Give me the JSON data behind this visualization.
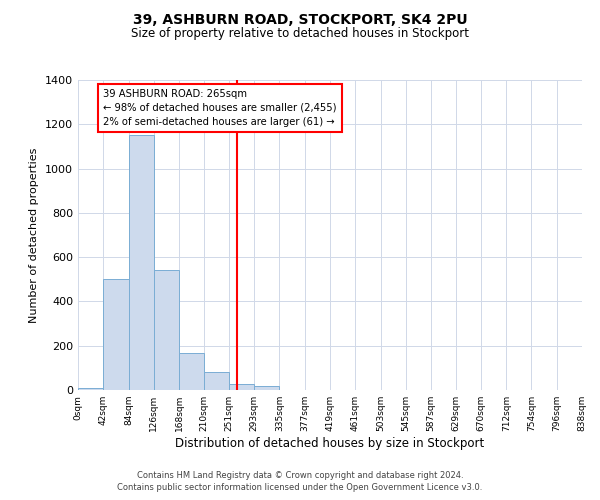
{
  "title": "39, ASHBURN ROAD, STOCKPORT, SK4 2PU",
  "subtitle": "Size of property relative to detached houses in Stockport",
  "xlabel": "Distribution of detached houses by size in Stockport",
  "ylabel": "Number of detached properties",
  "bar_color": "#cddaed",
  "bar_edge_color": "#7aadd4",
  "background_color": "#ffffff",
  "grid_color": "#d0d8e8",
  "vline_x": 265,
  "vline_color": "red",
  "annotation_title": "39 ASHBURN ROAD: 265sqm",
  "annotation_line1": "← 98% of detached houses are smaller (2,455)",
  "annotation_line2": "2% of semi-detached houses are larger (61) →",
  "annotation_box_color": "red",
  "bin_edges": [
    0,
    42,
    84,
    126,
    168,
    210,
    251,
    293,
    335,
    377,
    419,
    461,
    503,
    545,
    587,
    629,
    670,
    712,
    754,
    796,
    838
  ],
  "bin_counts": [
    10,
    500,
    1150,
    540,
    165,
    80,
    25,
    20,
    0,
    0,
    0,
    0,
    0,
    0,
    0,
    0,
    0,
    0,
    0,
    0
  ],
  "xlim": [
    0,
    838
  ],
  "ylim": [
    0,
    1400
  ],
  "yticks": [
    0,
    200,
    400,
    600,
    800,
    1000,
    1200,
    1400
  ],
  "xtick_labels": [
    "0sqm",
    "42sqm",
    "84sqm",
    "126sqm",
    "168sqm",
    "210sqm",
    "251sqm",
    "293sqm",
    "335sqm",
    "377sqm",
    "419sqm",
    "461sqm",
    "503sqm",
    "545sqm",
    "587sqm",
    "629sqm",
    "670sqm",
    "712sqm",
    "754sqm",
    "796sqm",
    "838sqm"
  ],
  "footer_line1": "Contains HM Land Registry data © Crown copyright and database right 2024.",
  "footer_line2": "Contains public sector information licensed under the Open Government Licence v3.0."
}
